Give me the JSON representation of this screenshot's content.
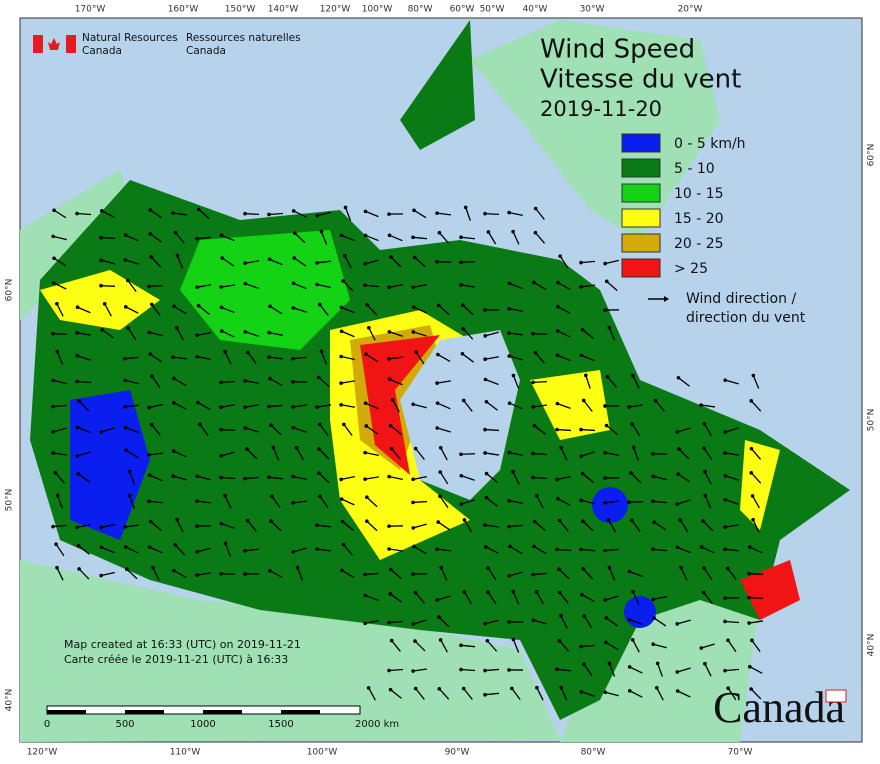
{
  "header": {
    "agency_en": [
      "Natural Resources",
      "Canada"
    ],
    "agency_fr": [
      "Ressources naturelles",
      "Canada"
    ]
  },
  "title": {
    "line1": "Wind Speed",
    "line2": "Vitesse du vent",
    "date": "2019-11-20"
  },
  "legend": {
    "items": [
      {
        "label": "0 - 5 km/h",
        "color": "#0a1ef0"
      },
      {
        "label": "5 - 10",
        "color": "#0a7a14"
      },
      {
        "label": "10 - 15",
        "color": "#14d214"
      },
      {
        "label": "15 - 20",
        "color": "#ffff14"
      },
      {
        "label": "20 - 25",
        "color": "#d2aa0a"
      },
      {
        "label": "> 25",
        "color": "#f01414"
      }
    ],
    "direction": [
      "Wind direction /",
      "direction du vent"
    ]
  },
  "graticule": {
    "top": [
      "170°W",
      "160°W",
      "150°W",
      "140°W",
      "120°W",
      "100°W",
      "80°W",
      "60°W",
      "50°W",
      "40°W",
      "30°W",
      "20°W"
    ],
    "bottom": [
      "120°W",
      "110°W",
      "100°W",
      "90°W",
      "80°W",
      "70°W"
    ],
    "left": [
      "60°N",
      "50°N",
      "40°N"
    ],
    "right": [
      "60°N",
      "50°N",
      "40°N"
    ]
  },
  "footer": {
    "created_en": "Map created at 16:33 (UTC) on 2019-11-21",
    "created_fr": "Carte créée le 2019-11-21 (UTC) à 16:33"
  },
  "scale_bar": {
    "labels": [
      "0",
      "500",
      "1000",
      "1500",
      "2000 km"
    ]
  },
  "wordmark": "Canada"
}
